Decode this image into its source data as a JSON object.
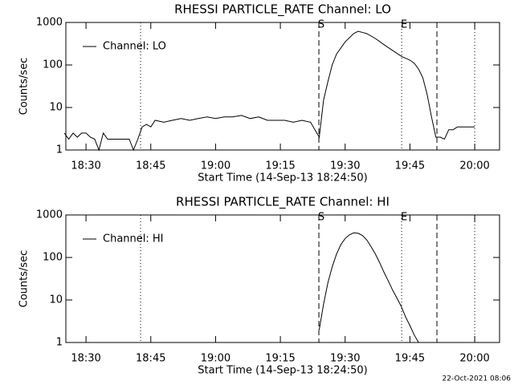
{
  "chart_data": [
    {
      "type": "line",
      "title": "RHESSI PARTICLE_RATE Channel: LO",
      "x_label": "Start Time (14-Sep-13 18:24:50)",
      "y_label": "Counts/sec",
      "log_y": true,
      "grid": false,
      "legend": "upper left",
      "xlim": [
        "18:25:20",
        "20:05:45"
      ],
      "xticks": [
        "18:30",
        "18:45",
        "19:00",
        "19:15",
        "19:30",
        "19:45",
        "20:00"
      ],
      "ylim": [
        1,
        1000
      ],
      "yticks": [
        1,
        10,
        100,
        1000
      ],
      "markers": [
        {
          "x": "18:42:38",
          "style": "dotted"
        },
        {
          "x": "19:23:55",
          "style": "dashed",
          "label": "S"
        },
        {
          "x": "19:43:05",
          "style": "dotted",
          "label": "E"
        },
        {
          "x": "19:51:15",
          "style": "dashed"
        },
        {
          "x": "20:00:00",
          "style": "dotted"
        }
      ],
      "x": [
        "18:25",
        "18:26",
        "18:27",
        "18:28",
        "18:29",
        "18:30",
        "18:31",
        "18:32",
        "18:33",
        "18:34",
        "18:35",
        "18:36",
        "18:37",
        "18:38",
        "18:39",
        "18:40",
        "18:41",
        "18:42",
        "18:43",
        "18:44",
        "18:45",
        "18:46",
        "18:48",
        "18:50",
        "18:52",
        "18:54",
        "18:56",
        "18:58",
        "19:00",
        "19:02",
        "19:04",
        "19:06",
        "19:08",
        "19:10",
        "19:12",
        "19:14",
        "19:16",
        "19:18",
        "19:20",
        "19:22",
        "19:23",
        "19:24",
        "19:25",
        "19:26",
        "19:27",
        "19:28",
        "19:30",
        "19:32",
        "19:33",
        "19:35",
        "19:37",
        "19:39",
        "19:41",
        "19:43",
        "19:45",
        "19:46",
        "19:47",
        "19:48",
        "19:49",
        "19:50",
        "19:51",
        "19:52",
        "19:53",
        "19:54",
        "19:55",
        "19:56",
        "19:58",
        "20:00"
      ],
      "series": [
        {
          "name": "Channel: LO",
          "color": "#000000",
          "values": [
            2.5,
            1.8,
            2.5,
            2,
            2.5,
            2.5,
            2,
            1.8,
            1,
            2.5,
            1.8,
            1.8,
            1.8,
            1.8,
            1.8,
            1.8,
            1,
            1.8,
            3.5,
            4,
            3.5,
            5,
            4.5,
            5,
            5.5,
            5,
            5.5,
            6,
            5.5,
            6,
            6,
            6.5,
            5.5,
            6,
            5,
            5,
            5,
            4.5,
            5,
            4.5,
            3,
            2,
            15,
            40,
            100,
            180,
            350,
            550,
            620,
            550,
            420,
            300,
            220,
            160,
            130,
            110,
            80,
            50,
            20,
            6,
            2,
            2,
            1.8,
            3,
            3,
            3.5,
            3.5,
            3.5
          ]
        }
      ]
    },
    {
      "type": "line",
      "title": "RHESSI PARTICLE_RATE Channel: HI",
      "x_label": "Start Time (14-Sep-13 18:24:50)",
      "y_label": "Counts/sec",
      "log_y": true,
      "grid": false,
      "legend": "upper left",
      "xlim": [
        "18:25:20",
        "20:05:45"
      ],
      "xticks": [
        "18:30",
        "18:45",
        "19:00",
        "19:15",
        "19:30",
        "19:45",
        "20:00"
      ],
      "ylim": [
        1,
        1000
      ],
      "yticks": [
        1,
        10,
        100,
        1000
      ],
      "markers": [
        {
          "x": "18:42:38",
          "style": "dotted"
        },
        {
          "x": "19:23:55",
          "style": "dashed",
          "label": "S"
        },
        {
          "x": "19:43:05",
          "style": "dotted",
          "label": "E"
        },
        {
          "x": "19:51:15",
          "style": "dashed"
        },
        {
          "x": "20:00:00",
          "style": "dotted"
        }
      ],
      "x": [
        "19:24",
        "19:25",
        "19:26",
        "19:27",
        "19:28",
        "19:29",
        "19:30",
        "19:31",
        "19:32",
        "19:33",
        "19:34",
        "19:35",
        "19:36",
        "19:37",
        "19:38",
        "19:39",
        "19:40",
        "19:41",
        "19:42",
        "19:43",
        "19:44",
        "19:45",
        "19:46",
        "19:47"
      ],
      "series": [
        {
          "name": "Channel: HI",
          "color": "#000000",
          "values": [
            2,
            8,
            25,
            60,
            120,
            200,
            280,
            340,
            380,
            370,
            330,
            260,
            180,
            120,
            75,
            45,
            28,
            17,
            11,
            7,
            4,
            2.5,
            1.5,
            1
          ]
        }
      ]
    }
  ],
  "footer": "22-Oct-2021 08:06"
}
